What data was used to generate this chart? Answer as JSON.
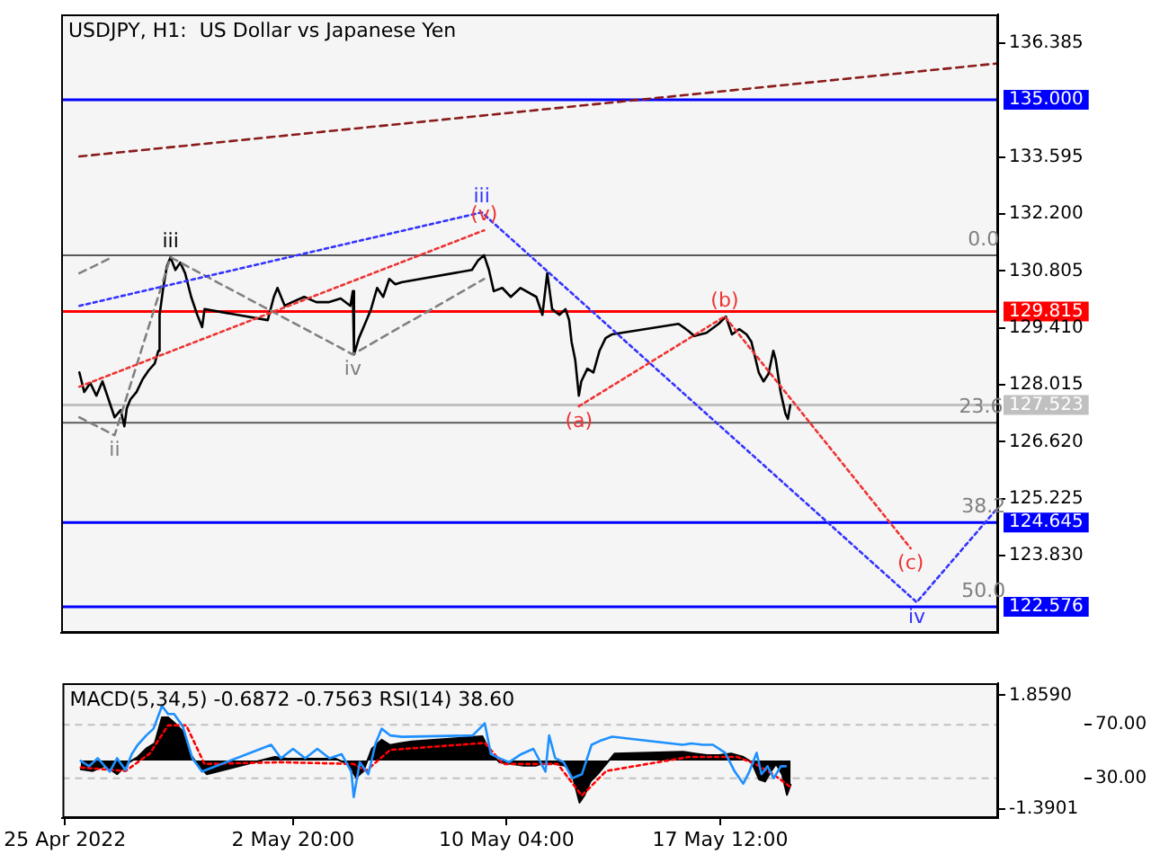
{
  "chart_data": [
    {
      "type": "line",
      "title": "USDJPY, H1:  US Dollar vs Japanese Yen",
      "marker": "none",
      "tick_labels": "y",
      "grid": false,
      "xlim": [
        "2022-04-24T22:00",
        "2022-05-27T01:00"
      ],
      "ylim": [
        121.94,
        137.09
      ],
      "yticks": [
        {
          "value": 136.385,
          "label": "136.385"
        },
        {
          "value": 133.595,
          "label": "133.595"
        },
        {
          "value": 132.2,
          "label": "132.200"
        },
        {
          "value": 130.805,
          "label": "130.805"
        },
        {
          "value": 129.41,
          "label": "129.410"
        },
        {
          "value": 128.015,
          "label": "128.015"
        },
        {
          "value": 126.62,
          "label": "126.620"
        },
        {
          "value": 125.225,
          "label": "125.225"
        },
        {
          "value": 123.83,
          "label": "123.830"
        }
      ],
      "x": [
        "2022-04-25T13:00",
        "2022-04-25T17:00",
        "2022-04-25T22:00",
        "2022-04-26T03:00",
        "2022-04-26T08:00",
        "2022-04-26T13:00",
        "2022-04-26T18:00",
        "2022-04-26T23:00",
        "2022-04-27T02:00",
        "2022-04-27T04:00",
        "2022-04-27T07:00",
        "2022-04-27T12:00",
        "2022-04-27T17:00",
        "2022-04-27T22:00",
        "2022-04-28T03:00",
        "2022-04-28T06:00",
        "2022-04-28T07:00",
        "2022-04-28T10:00",
        "2022-04-28T13:00",
        "2022-04-28T16:00",
        "2022-04-28T20:00",
        "2022-04-29T00:00",
        "2022-04-29T04:00",
        "2022-04-29T09:00",
        "2022-04-29T14:00",
        "2022-04-29T18:00",
        "2022-04-29T20:00",
        "2022-05-02T00:00",
        "2022-05-02T05:00",
        "2022-05-02T08:00",
        "2022-05-02T14:00",
        "2022-05-02T20:00",
        "2022-05-03T06:00",
        "2022-05-03T16:00",
        "2022-05-04T02:00",
        "2022-05-04T12:00",
        "2022-05-04T20:00",
        "2022-05-04T22:00",
        "2022-05-04T23:00",
        "2022-05-05T03:00",
        "2022-05-05T08:00",
        "2022-05-05T13:00",
        "2022-05-05T18:00",
        "2022-05-05T23:00",
        "2022-05-06T04:00",
        "2022-05-06T09:00",
        "2022-05-06T14:00",
        "2022-05-09T00:00",
        "2022-05-09T05:00",
        "2022-05-09T10:00",
        "2022-05-09T14:00",
        "2022-05-09T18:00",
        "2022-05-10T01:00",
        "2022-05-10T08:00",
        "2022-05-10T16:00",
        "2022-05-11T05:00",
        "2022-05-11T10:00",
        "2022-05-11T14:00",
        "2022-05-11T18:00",
        "2022-05-12T00:00",
        "2022-05-12T05:00",
        "2022-05-12T08:00",
        "2022-05-12T10:00",
        "2022-05-12T13:00",
        "2022-05-12T16:00",
        "2022-05-12T18:00",
        "2022-05-12T23:00",
        "2022-05-13T04:00",
        "2022-05-13T09:00",
        "2022-05-13T14:00",
        "2022-05-13T19:00",
        "2022-05-16T02:00",
        "2022-05-16T10:00",
        "2022-05-16T15:00",
        "2022-05-17T01:00",
        "2022-05-17T11:00",
        "2022-05-17T17:00",
        "2022-05-17T22:00",
        "2022-05-18T04:00",
        "2022-05-18T10:00",
        "2022-05-18T14:00",
        "2022-05-18T20:00",
        "2022-05-19T00:00",
        "2022-05-19T04:00",
        "2022-05-19T08:00",
        "2022-05-19T10:00",
        "2022-05-19T14:00",
        "2022-05-19T18:00",
        "2022-05-19T20:00",
        "2022-05-19T22:00"
      ],
      "series": [
        {
          "color": "#000000",
          "line_style": "solid",
          "values": [
            128.32,
            127.84,
            128.06,
            127.75,
            128.1,
            127.66,
            127.22,
            127.4,
            127.0,
            127.44,
            127.66,
            127.84,
            128.15,
            128.37,
            128.54,
            128.85,
            129.73,
            130.39,
            130.92,
            131.14,
            130.83,
            131.01,
            130.75,
            130.17,
            129.73,
            129.43,
            129.87,
            129.6,
            130.17,
            130.39,
            129.95,
            130.04,
            130.17,
            130.04,
            130.04,
            130.13,
            129.95,
            130.31,
            128.76,
            129.16,
            129.51,
            129.87,
            130.39,
            130.17,
            130.61,
            130.48,
            130.53,
            130.83,
            131.06,
            131.19,
            130.83,
            130.31,
            130.39,
            130.17,
            130.39,
            130.17,
            129.73,
            130.75,
            129.87,
            129.73,
            129.87,
            129.6,
            129.07,
            128.63,
            127.75,
            128.1,
            128.41,
            128.32,
            128.85,
            129.16,
            129.25,
            129.51,
            129.34,
            129.21,
            129.29,
            129.51,
            129.69,
            129.25,
            129.38,
            129.25,
            129.07,
            128.32,
            128.1,
            128.28,
            128.85,
            128.63,
            127.84,
            127.31,
            127.18,
            127.52
          ]
        },
        {
          "color": "#8b1a1a",
          "line_style": "dashed",
          "x": [
            "2022-04-25T13:00",
            "2022-05-27T01:00"
          ],
          "values": [
            133.61,
            135.89
          ]
        },
        {
          "color": "#808080",
          "line_style": "dashed",
          "x": [
            "2022-04-25T13:00",
            "2022-04-26T16:00"
          ],
          "values": [
            130.75,
            131.14
          ]
        },
        {
          "color": "#808080",
          "line_style": "dashed",
          "x": [
            "2022-04-25T13:00",
            "2022-04-26T18:00",
            "2022-04-28T16:00",
            "2022-05-04T22:00",
            "2022-05-09T10:00"
          ],
          "values": [
            127.22,
            126.78,
            131.14,
            128.76,
            130.61
          ]
        },
        {
          "color": "#3333ff",
          "line_style": "dotted",
          "x": [
            "2022-04-25T13:00",
            "2022-05-09T08:00",
            "2022-05-24T06:00",
            "2022-05-27T00:00"
          ],
          "values": [
            129.95,
            132.24,
            122.69,
            124.98
          ]
        },
        {
          "color": "#ee3333",
          "line_style": "dotted",
          "x": [
            "2022-04-25T13:00",
            "2022-05-09T10:00"
          ],
          "values": [
            127.97,
            131.8
          ]
        },
        {
          "color": "#ee3333",
          "line_style": "dotted",
          "x": [
            "2022-05-12T16:00",
            "2022-05-17T16:00",
            "2022-05-24T01:00"
          ],
          "values": [
            127.49,
            129.69,
            124.01
          ]
        }
      ],
      "ref_lines": [
        {
          "axis": "y",
          "value": 131.19,
          "color": "#5a5a5a"
        },
        {
          "axis": "y",
          "value": 127.09,
          "color": "#5a5a5a"
        },
        {
          "axis": "y",
          "value": 135.0,
          "label": "135.000",
          "color": "#0000ff"
        },
        {
          "axis": "y",
          "value": 129.815,
          "label": "129.815",
          "color": "#ff0000"
        },
        {
          "axis": "y",
          "value": 127.523,
          "label": "127.523",
          "color": "#c0c0c0"
        },
        {
          "axis": "y",
          "value": 124.645,
          "label": "124.645",
          "color": "#0000ff"
        },
        {
          "axis": "y",
          "value": 122.576,
          "label": "122.576",
          "color": "#0000ff"
        }
      ],
      "annotations": [
        {
          "text": "ii",
          "x": "2022-04-26T18:00",
          "y": 126.78
        },
        {
          "text": "iii",
          "x": "2022-04-28T16:00",
          "y": 131.14
        },
        {
          "text": "iv",
          "x": "2022-05-04T22:00",
          "y": 128.76
        },
        {
          "text": "iii",
          "x": "2022-05-09T08:00",
          "y": 132.24
        },
        {
          "text": "(v)",
          "x": "2022-05-09T10:00",
          "y": 131.8
        },
        {
          "text": "(a)",
          "x": "2022-05-12T16:00",
          "y": 127.49
        },
        {
          "text": "(b)",
          "x": "2022-05-17T16:00",
          "y": 129.69
        },
        {
          "text": "(c)",
          "x": "2022-05-24T01:00",
          "y": 124.01
        },
        {
          "text": "iv",
          "x": "2022-05-24T06:00",
          "y": 122.69
        },
        {
          "text": "0.0",
          "x": "2022-05-26T13:00",
          "y": 131.19
        },
        {
          "text": "23.6",
          "x": "2022-05-26T11:00",
          "y": 127.09
        },
        {
          "text": "38.2",
          "x": "2022-05-26T13:00",
          "y": 124.645
        },
        {
          "text": "50.0",
          "x": "2022-05-26T13:00",
          "y": 122.576
        }
      ]
    },
    {
      "type": "area",
      "title": "MACD(5,34,5) -0.6872 -0.7563 RSI(14) 38.60",
      "marker": "none",
      "grid": false,
      "xlim": [
        "2022-04-24T22:00",
        "2022-05-27T01:00"
      ],
      "xticks": [
        {
          "value": "2022-04-25T00:00",
          "label": "25 Apr 2022"
        },
        {
          "value": "2022-05-02T20:00",
          "label": "2 May 20:00"
        },
        {
          "value": "2022-05-10T04:00",
          "label": "10 May 04:00"
        },
        {
          "value": "2022-05-17T12:00",
          "label": "17 May 12:00"
        }
      ],
      "ylim": [
        -1.64,
        2.2
      ],
      "yticks": [
        {
          "value": 1.859,
          "label": "1.8590"
        },
        {
          "value": -1.3901,
          "label": "-1.3901"
        }
      ],
      "y2lim": [
        0.3,
        101
      ],
      "y2ticks": [
        {
          "value": 70,
          "label": "70.00"
        },
        {
          "value": 30,
          "label": "30.00"
        }
      ],
      "series": [
        {
          "color": "#000000",
          "x": [
            "2022-04-25T13:00",
            "2022-04-25T23:00",
            "2022-04-26T09:00",
            "2022-04-26T19:00",
            "2022-04-27T05:00",
            "2022-04-27T12:00",
            "2022-04-27T19:00",
            "2022-04-28T02:00",
            "2022-04-28T08:00",
            "2022-04-28T13:00",
            "2022-04-28T18:00",
            "2022-04-29T01:00",
            "2022-04-29T07:00",
            "2022-04-29T14:00",
            "2022-04-29T21:00",
            "2022-05-02T05:00",
            "2022-05-02T15:00",
            "2022-05-03T01:00",
            "2022-05-03T11:00",
            "2022-05-03T21:00",
            "2022-05-04T07:00",
            "2022-05-04T17:00",
            "2022-05-05T00:00",
            "2022-05-05T06:00",
            "2022-05-05T13:00",
            "2022-05-05T21:00",
            "2022-05-06T04:00",
            "2022-05-06T12:00",
            "2022-05-06T22:00",
            "2022-05-09T08:00",
            "2022-05-09T15:00",
            "2022-05-09T22:00",
            "2022-05-10T08:00",
            "2022-05-10T18:00",
            "2022-05-11T04:00",
            "2022-05-11T12:00",
            "2022-05-11T20:00",
            "2022-05-12T04:00",
            "2022-05-12T10:00",
            "2022-05-12T16:00",
            "2022-05-12T20:00",
            "2022-05-13T01:00",
            "2022-05-13T07:00",
            "2022-05-13T14:00",
            "2022-05-13T21:00",
            "2022-05-16T05:00",
            "2022-05-16T15:00",
            "2022-05-17T01:00",
            "2022-05-17T11:00",
            "2022-05-17T21:00",
            "2022-05-18T07:00",
            "2022-05-18T14:00",
            "2022-05-18T20:00",
            "2022-05-19T01:00",
            "2022-05-19T06:00",
            "2022-05-19T10:00",
            "2022-05-19T15:00",
            "2022-05-19T19:00",
            "2022-05-19T22:00"
          ],
          "values": [
            -0.25,
            -0.3,
            -0.15,
            -0.39,
            -0.05,
            0.1,
            0.34,
            0.49,
            1.23,
            1.23,
            1.08,
            0.84,
            0.2,
            -0.15,
            -0.39,
            0.1,
            0.05,
            0.05,
            0.05,
            0.05,
            0.05,
            -0.1,
            -0.49,
            -0.3,
            0.34,
            0.59,
            0.44,
            0.49,
            0.54,
            0.69,
            0.2,
            -0.05,
            -0.1,
            -0.15,
            -0.15,
            -0.05,
            -0.1,
            -0.15,
            -0.39,
            -1.2,
            -1.0,
            -0.6,
            -0.39,
            -0.1,
            0.2,
            0.25,
            0.2,
            0.15,
            0.15,
            0.2,
            0.1,
            -0.05,
            -0.54,
            -0.6,
            -0.3,
            -0.1,
            -0.4,
            -0.98,
            -0.69
          ]
        },
        {
          "type": "line",
          "color": "#ff0000",
          "line_style": "dotted",
          "x": [
            "2022-04-25T13:00",
            "2022-04-27T02:00",
            "2022-04-27T22:00",
            "2022-04-28T13:00",
            "2022-04-29T04:00",
            "2022-04-29T19:00",
            "2022-05-02T10:00",
            "2022-05-04T22:00",
            "2022-05-05T08:00",
            "2022-05-06T04:00",
            "2022-05-09T10:00",
            "2022-05-10T01:00",
            "2022-05-11T22:00",
            "2022-05-12T18:00",
            "2022-05-13T14:00",
            "2022-05-16T10:00",
            "2022-05-18T02:00",
            "2022-05-18T17:00",
            "2022-05-19T08:00",
            "2022-05-19T22:00"
          ],
          "values": [
            -0.2,
            -0.3,
            0.2,
            1.0,
            1.0,
            -0.1,
            -0.05,
            -0.1,
            -0.3,
            0.3,
            0.5,
            -0.1,
            -0.1,
            -1.0,
            -0.3,
            0.1,
            0.1,
            -0.1,
            -0.4,
            -0.76
          ]
        },
        {
          "type": "line",
          "color": "#1e90ff",
          "line_style": "solid",
          "axis": "y2",
          "x": [
            "2022-04-25T13:00",
            "2022-04-25T20:00",
            "2022-04-26T03:00",
            "2022-04-26T13:00",
            "2022-04-26T19:00",
            "2022-04-27T02:00",
            "2022-04-27T07:00",
            "2022-04-27T12:00",
            "2022-04-27T19:00",
            "2022-04-28T01:00",
            "2022-04-28T08:00",
            "2022-04-28T13:00",
            "2022-04-28T18:00",
            "2022-04-29T01:00",
            "2022-04-29T09:00",
            "2022-04-29T17:00",
            "2022-05-02T02:00",
            "2022-05-02T10:00",
            "2022-05-02T20:00",
            "2022-05-03T06:00",
            "2022-05-03T16:00",
            "2022-05-04T02:00",
            "2022-05-04T12:00",
            "2022-05-04T20:00",
            "2022-05-04T22:00",
            "2022-05-05T03:00",
            "2022-05-05T10:00",
            "2022-05-05T16:00",
            "2022-05-05T21:00",
            "2022-05-06T04:00",
            "2022-05-06T14:00",
            "2022-05-09T00:00",
            "2022-05-09T10:00",
            "2022-05-09T15:00",
            "2022-05-09T22:00",
            "2022-05-10T06:00",
            "2022-05-10T16:00",
            "2022-05-11T02:00",
            "2022-05-11T12:00",
            "2022-05-11T15:00",
            "2022-05-11T20:00",
            "2022-05-12T03:00",
            "2022-05-12T10:00",
            "2022-05-12T18:00",
            "2022-05-13T02:00",
            "2022-05-13T09:00",
            "2022-05-13T19:00",
            "2022-05-16T05:00",
            "2022-05-16T12:00",
            "2022-05-16T22:00",
            "2022-05-17T06:00",
            "2022-05-17T16:00",
            "2022-05-18T00:00",
            "2022-05-18T07:00",
            "2022-05-18T12:00",
            "2022-05-18T18:00",
            "2022-05-18T22:00",
            "2022-05-19T03:00",
            "2022-05-19T08:00",
            "2022-05-19T14:00",
            "2022-05-19T18:00"
          ],
          "values": [
            43,
            39,
            45,
            35,
            45,
            36,
            48,
            55,
            62,
            67,
            84,
            78,
            78,
            69,
            45,
            35,
            55,
            45,
            52,
            45,
            52,
            45,
            48,
            35,
            16,
            42,
            33,
            56,
            67,
            62,
            61,
            62,
            71,
            48,
            45,
            42,
            48,
            52,
            35,
            62,
            45,
            42,
            30,
            33,
            55,
            58,
            61,
            55,
            56,
            55,
            55,
            49,
            35,
            26,
            35,
            49,
            33,
            39,
            30,
            39,
            39
          ]
        }
      ],
      "ref_lines": [
        {
          "axis": "y2",
          "value": 70,
          "color": "#c0c0c0",
          "line_style": "dashed"
        },
        {
          "axis": "y2",
          "value": 30,
          "color": "#c0c0c0",
          "line_style": "dashed"
        }
      ]
    }
  ]
}
